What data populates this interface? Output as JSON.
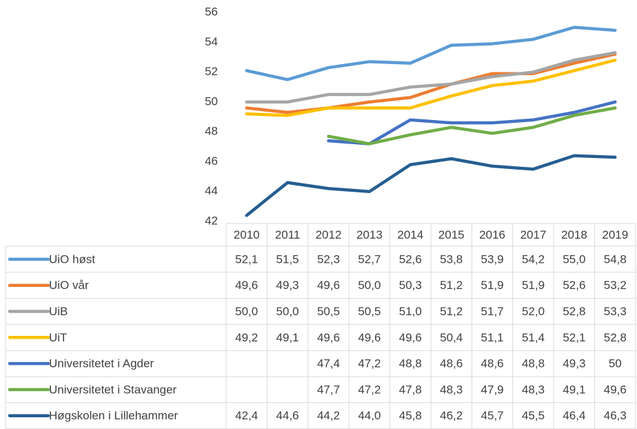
{
  "chart_data": {
    "type": "line",
    "categories": [
      "2010",
      "2011",
      "2012",
      "2013",
      "2014",
      "2015",
      "2016",
      "2017",
      "2018",
      "2019"
    ],
    "ylim": [
      42,
      56
    ],
    "yticks": [
      42,
      44,
      46,
      48,
      50,
      52,
      54,
      56
    ],
    "grid": false,
    "series": [
      {
        "name": "UiO høst",
        "color": "#5b9bd5",
        "values": [
          52.1,
          51.5,
          52.3,
          52.7,
          52.6,
          53.8,
          53.9,
          54.2,
          55.0,
          54.8
        ],
        "value_labels": [
          "52,1",
          "51,5",
          "52,3",
          "52,7",
          "52,6",
          "53,8",
          "53,9",
          "54,2",
          "55,0",
          "54,8"
        ]
      },
      {
        "name": "UiO vår",
        "color": "#ed7d31",
        "values": [
          49.6,
          49.3,
          49.6,
          50.0,
          50.3,
          51.2,
          51.9,
          51.9,
          52.6,
          53.2
        ],
        "value_labels": [
          "49,6",
          "49,3",
          "49,6",
          "50,0",
          "50,3",
          "51,2",
          "51,9",
          "51,9",
          "52,6",
          "53,2"
        ]
      },
      {
        "name": "UiB",
        "color": "#a5a5a5",
        "values": [
          50.0,
          50.0,
          50.5,
          50.5,
          51.0,
          51.2,
          51.7,
          52.0,
          52.8,
          53.3
        ],
        "value_labels": [
          "50,0",
          "50,0",
          "50,5",
          "50,5",
          "51,0",
          "51,2",
          "51,7",
          "52,0",
          "52,8",
          "53,3"
        ]
      },
      {
        "name": "UiT",
        "color": "#ffc000",
        "values": [
          49.2,
          49.1,
          49.6,
          49.6,
          49.6,
          50.4,
          51.1,
          51.4,
          52.1,
          52.8
        ],
        "value_labels": [
          "49,2",
          "49,1",
          "49,6",
          "49,6",
          "49,6",
          "50,4",
          "51,1",
          "51,4",
          "52,1",
          "52,8"
        ]
      },
      {
        "name": "Universitetet i Agder",
        "color": "#4472c4",
        "values": [
          null,
          null,
          47.4,
          47.2,
          48.8,
          48.6,
          48.6,
          48.8,
          49.3,
          50
        ],
        "value_labels": [
          null,
          null,
          "47,4",
          "47,2",
          "48,8",
          "48,6",
          "48,6",
          "48,8",
          "49,3",
          "50"
        ]
      },
      {
        "name": "Universitetet i Stavanger",
        "color": "#70ad47",
        "values": [
          null,
          null,
          47.7,
          47.2,
          47.8,
          48.3,
          47.9,
          48.3,
          49.1,
          49.6
        ],
        "value_labels": [
          null,
          null,
          "47,7",
          "47,2",
          "47,8",
          "48,3",
          "47,9",
          "48,3",
          "49,1",
          "49,6"
        ]
      },
      {
        "name": "Høgskolen i Lillehammer",
        "color": "#255e91",
        "values": [
          42.4,
          44.6,
          44.2,
          44.0,
          45.8,
          46.2,
          45.7,
          45.5,
          46.4,
          46.3
        ],
        "value_labels": [
          "42,4",
          "44,6",
          "44,2",
          "44,0",
          "45,8",
          "46,2",
          "45,7",
          "45,5",
          "46,4",
          "46,3"
        ]
      }
    ]
  }
}
